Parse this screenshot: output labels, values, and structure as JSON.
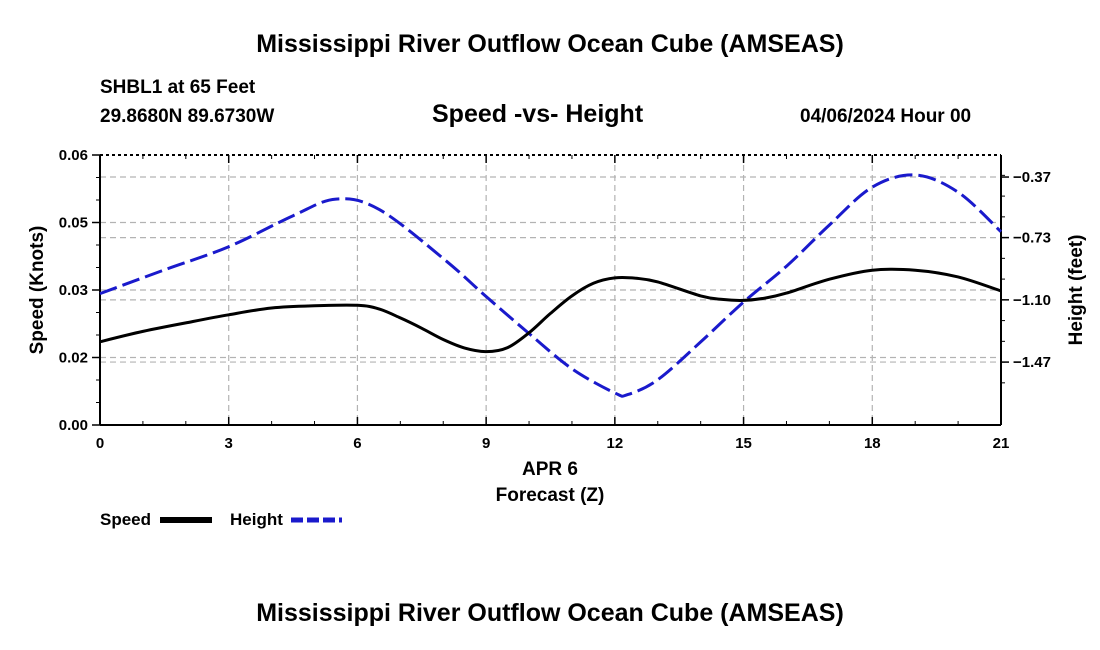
{
  "title": "Mississippi River Outflow Ocean Cube (AMSEAS)",
  "footer_title": "Mississippi River Outflow Ocean Cube (AMSEAS)",
  "station": "SHBL1 at 65 Feet",
  "coordinates": "29.8680N  89.6730W",
  "subtitle": "Speed -vs- Height",
  "datetime": "04/06/2024 Hour 00",
  "chart_data": {
    "type": "line",
    "title": "Speed -vs- Height",
    "xlabel": "Forecast (Z)",
    "xsublabel": "APR 6",
    "ylabel": "Speed (Knots)",
    "y2label": "Height (feet)",
    "xlim": [
      0,
      21
    ],
    "ylim": [
      0,
      0.06
    ],
    "y2lim": [
      -1.844,
      -0.239
    ],
    "x_ticks": [
      0,
      3,
      6,
      9,
      12,
      15,
      18,
      21
    ],
    "x_tick_labels": [
      "0",
      "3",
      "6",
      "9",
      "12",
      "15",
      "18",
      "21"
    ],
    "y_ticks": [
      0,
      0.015,
      0.03,
      0.045,
      0.06
    ],
    "y_tick_labels": [
      "0.00",
      "0.02",
      "0.03",
      "0.05",
      "0.06"
    ],
    "y2_ticks": [
      -1.47,
      -1.1,
      -0.73,
      -0.37
    ],
    "y2_tick_labels": [
      "−1.47",
      "−1.10",
      "−0.73",
      "−0.37"
    ],
    "grid": true,
    "legend": [
      {
        "name": "Speed",
        "color": "#000000",
        "style": "solid"
      },
      {
        "name": "Height",
        "color": "#1a1acc",
        "style": "dashed"
      }
    ],
    "series": [
      {
        "name": "Speed",
        "axis": "left",
        "color": "#000000",
        "x": [
          0,
          1,
          2,
          3,
          4,
          5,
          6,
          6.5,
          7,
          7.5,
          8,
          8.5,
          9,
          9.5,
          10,
          10.5,
          11,
          11.5,
          12,
          12.5,
          13,
          14,
          14.5,
          15,
          15.5,
          16,
          17,
          18,
          19,
          20,
          21
        ],
        "values": [
          0.0185,
          0.0208,
          0.0227,
          0.0245,
          0.026,
          0.0265,
          0.0266,
          0.0258,
          0.0238,
          0.0215,
          0.019,
          0.0171,
          0.0163,
          0.0172,
          0.0205,
          0.0248,
          0.0287,
          0.0315,
          0.0327,
          0.0326,
          0.0318,
          0.0287,
          0.0279,
          0.0277,
          0.0282,
          0.0293,
          0.0324,
          0.0344,
          0.0344,
          0.0329,
          0.0298
        ]
      },
      {
        "name": "Height",
        "axis": "right",
        "color": "#1a1acc",
        "x": [
          0,
          1.5,
          3,
          4.5,
          5.5,
          6.5,
          8,
          9,
          10,
          11,
          12,
          12.3,
          13,
          14,
          15,
          16,
          17,
          18,
          19,
          20,
          21
        ],
        "values": [
          -1.063,
          -0.922,
          -0.784,
          -0.6,
          -0.501,
          -0.562,
          -0.854,
          -1.08,
          -1.3,
          -1.51,
          -1.654,
          -1.663,
          -1.575,
          -1.35,
          -1.113,
          -0.9,
          -0.655,
          -0.43,
          -0.358,
          -0.46,
          -0.695
        ]
      }
    ]
  }
}
